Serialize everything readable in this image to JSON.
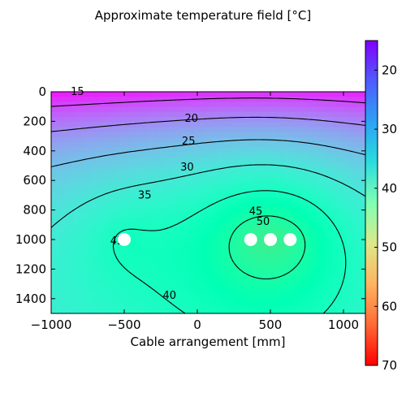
{
  "chart_data": {
    "type": "heatmap",
    "title": "Approximate temperature field [$^\\circ$C]",
    "title_display": "Approximate temperature field [°C]",
    "xlabel": "Cable arrangement [mm]",
    "ylabel": "",
    "xlim": [
      -1000,
      1150
    ],
    "ylim": [
      1500,
      0
    ],
    "x_ticks": [
      -1000,
      -500,
      0,
      500,
      1000
    ],
    "x_tick_labels": [
      "−1000",
      "−500",
      "0",
      "500",
      "1000"
    ],
    "y_ticks": [
      0,
      200,
      400,
      600,
      800,
      1000,
      1200,
      1400
    ],
    "y_tick_labels": [
      "0",
      "200",
      "400",
      "600",
      "800",
      "1000",
      "1200",
      "1400"
    ],
    "colorbar": {
      "colormap": "rainbow",
      "range": [
        15,
        70
      ],
      "ticks": [
        20,
        30,
        40,
        50,
        60,
        70
      ],
      "tick_labels": [
        "20",
        "30",
        "40",
        "50",
        "60",
        "70"
      ]
    },
    "contour_levels": [
      15,
      20,
      25,
      30,
      35,
      40,
      45,
      50
    ],
    "contour_labels": [
      {
        "text": "15",
        "x": -820,
        "y": 0
      },
      {
        "text": "20",
        "x": -40,
        "y": 180
      },
      {
        "text": "25",
        "x": -60,
        "y": 335
      },
      {
        "text": "30",
        "x": -70,
        "y": 510
      },
      {
        "text": "35",
        "x": -360,
        "y": 700
      },
      {
        "text": "45",
        "x": 400,
        "y": 810
      },
      {
        "text": "50",
        "x": 450,
        "y": 880
      },
      {
        "text": "45",
        "x": -550,
        "y": 1010
      },
      {
        "text": "40",
        "x": -190,
        "y": 1380
      }
    ],
    "cables": [
      {
        "x": -500,
        "y": 1000
      },
      {
        "x": 365,
        "y": 1000
      },
      {
        "x": 500,
        "y": 1000
      },
      {
        "x": 635,
        "y": 1000
      }
    ],
    "grid": false
  }
}
